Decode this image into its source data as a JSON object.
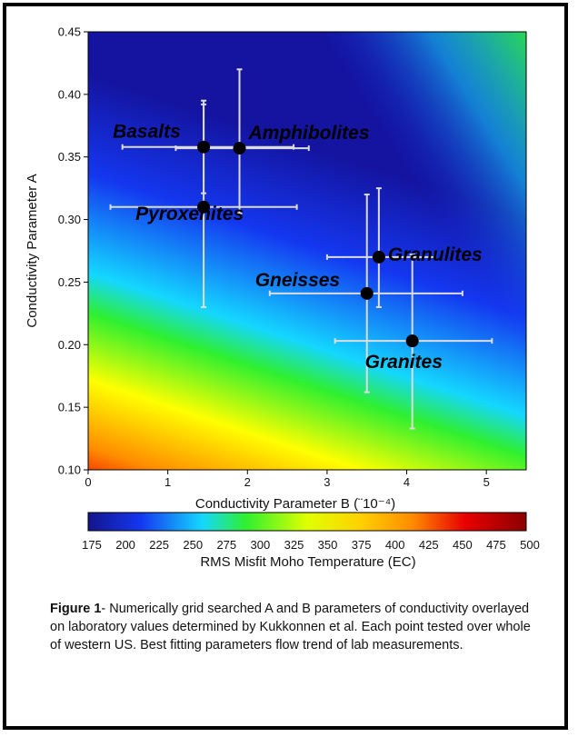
{
  "chart_data": {
    "type": "scatter",
    "title": "",
    "xlabel": "Conductivity Parameter B (¨10⁻⁴)",
    "ylabel": "Conductivity Parameter A",
    "xlim": [
      0,
      5.5
    ],
    "ylim": [
      0.1,
      0.45
    ],
    "x_ticks": [
      "0",
      "1",
      "2",
      "3",
      "4",
      "5"
    ],
    "y_ticks": [
      "0.10",
      "0.15",
      "0.20",
      "0.25",
      "0.30",
      "0.35",
      "0.40",
      "0.45"
    ],
    "grid": false,
    "background": "RMS misfit surface (color map)",
    "points": [
      {
        "label": "Basalts",
        "x": 1.45,
        "y": 0.358,
        "x_err": [
          0.43,
          2.58
        ],
        "y_err": [
          0.321,
          0.395
        ]
      },
      {
        "label": "Amphibolites",
        "x": 1.9,
        "y": 0.357,
        "x_err": [
          1.1,
          2.77
        ],
        "y_err": [
          0.305,
          0.42
        ]
      },
      {
        "label": "Pyroxenites",
        "x": 1.45,
        "y": 0.31,
        "x_err": [
          0.28,
          2.62
        ],
        "y_err": [
          0.23,
          0.392
        ]
      },
      {
        "label": "Granulites",
        "x": 3.65,
        "y": 0.27,
        "x_err": [
          3.0,
          4.35
        ],
        "y_err": [
          0.23,
          0.325
        ]
      },
      {
        "label": "Gneisses",
        "x": 3.5,
        "y": 0.241,
        "x_err": [
          2.28,
          4.7
        ],
        "y_err": [
          0.162,
          0.32
        ]
      },
      {
        "label": "Granites",
        "x": 4.07,
        "y": 0.203,
        "x_err": [
          3.1,
          5.07
        ],
        "y_err": [
          0.133,
          0.272
        ]
      }
    ],
    "colorbar": {
      "label": "RMS Misfit Moho Temperature (EC)",
      "ticks": [
        "175",
        "200",
        "225",
        "250",
        "275",
        "300",
        "325",
        "350",
        "375",
        "400",
        "425",
        "450",
        "475",
        "500"
      ]
    }
  },
  "caption": {
    "bold": "Figure 1",
    "text": "- Numerically grid searched A and B parameters of conductivity overlayed on laboratory values determined by Kukkonnen et al. Each point tested over whole of western US. Best fitting parameters flow trend of lab measurements."
  },
  "colors": {
    "dark_blue": "#1414a0",
    "blue": "#1437f0",
    "cyan": "#14d7ff",
    "green": "#2ff02f",
    "yellow": "#ffff00",
    "orange": "#ff8c00",
    "red": "#e80000",
    "dark_red": "#8b0000",
    "marker": "#000000",
    "errorbar": "#dcdcdc"
  }
}
